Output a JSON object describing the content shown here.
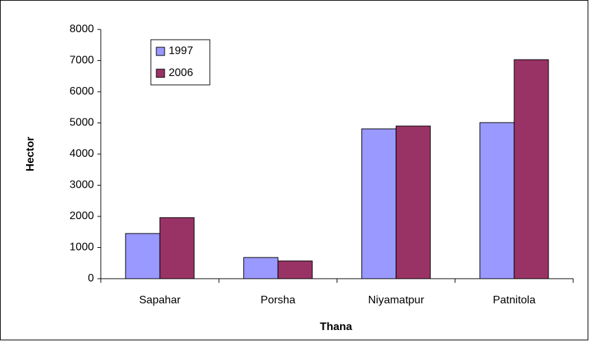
{
  "chart_data": {
    "type": "bar",
    "x_label": "Thana",
    "y_label": "Hector",
    "categories": [
      "Sapahar",
      "Porsha",
      "Niyamatpur",
      "Patnitola"
    ],
    "series": [
      {
        "name": "1997",
        "color": "#9999ff",
        "values": [
          1450,
          680,
          4810,
          5010
        ]
      },
      {
        "name": "2006",
        "color": "#993366",
        "values": [
          1960,
          570,
          4900,
          7030
        ]
      }
    ],
    "ylim": [
      0,
      8000
    ],
    "yticks": [
      0,
      1000,
      2000,
      3000,
      4000,
      5000,
      6000,
      7000,
      8000
    ],
    "grid": false,
    "legend": "upper left"
  }
}
